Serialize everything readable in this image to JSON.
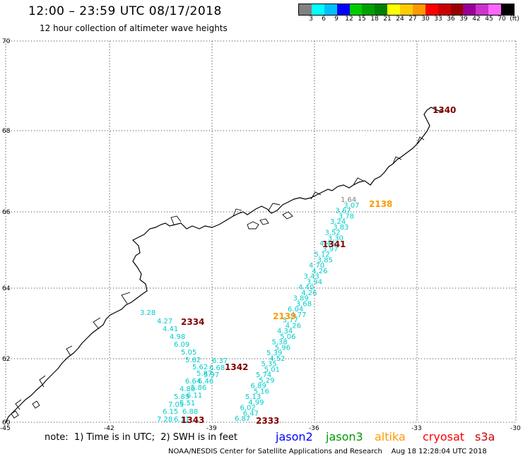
{
  "header": {
    "title": "12:00 – 23:59 UTC 08/17/2018",
    "subtitle": "12 hour collection of altimeter wave heights"
  },
  "colorbar": {
    "colors": [
      "#808080",
      "#00ffff",
      "#00bfff",
      "#0000ff",
      "#00cc00",
      "#00a000",
      "#008000",
      "#ffff00",
      "#ffcc00",
      "#ff9900",
      "#ff0000",
      "#cc0000",
      "#990000",
      "#990099",
      "#cc33cc",
      "#ff66ff",
      "#000000"
    ],
    "labels": [
      "3",
      "6",
      "9",
      "12",
      "15",
      "18",
      "21",
      "24",
      "27",
      "30",
      "33",
      "36",
      "39",
      "42",
      "45",
      "70",
      "(ft)"
    ]
  },
  "axes": {
    "lat_ticks": [
      "70",
      "68",
      "66",
      "64",
      "62",
      "60"
    ],
    "lon_ticks": [
      "-45",
      "-42",
      "-39",
      "-36",
      "-33",
      "-30"
    ]
  },
  "swh_values": [
    {
      "v": "3.28",
      "c": "#00cccc"
    },
    {
      "v": "4.27",
      "c": "#00cccc"
    },
    {
      "v": "4.41",
      "c": "#00cccc"
    },
    {
      "v": "4.98",
      "c": "#00cccc"
    },
    {
      "v": "6.09",
      "c": "#00cccc"
    },
    {
      "v": "5.05",
      "c": "#00cccc"
    },
    {
      "v": "5.62",
      "c": "#00cccc"
    },
    {
      "v": "5.62",
      "c": "#00cccc"
    },
    {
      "v": "5.87",
      "c": "#00cccc"
    },
    {
      "v": "6.64",
      "c": "#00cccc"
    },
    {
      "v": "4.86",
      "c": "#00cccc"
    },
    {
      "v": "5.89",
      "c": "#00cccc"
    },
    {
      "v": "7.05",
      "c": "#00cccc"
    },
    {
      "v": "6.15",
      "c": "#00cccc"
    },
    {
      "v": "7.28",
      "c": "#00cccc"
    },
    {
      "v": "6.11",
      "c": "#00cccc"
    },
    {
      "v": "6.88",
      "c": "#00cccc"
    },
    {
      "v": "5.51",
      "c": "#00cccc"
    },
    {
      "v": "6.11",
      "c": "#00cccc"
    },
    {
      "v": "5.86",
      "c": "#00cccc"
    },
    {
      "v": "6.46",
      "c": "#00cccc"
    },
    {
      "v": "5.97",
      "c": "#00cccc"
    },
    {
      "v": "6.68",
      "c": "#00cccc"
    },
    {
      "v": "6.37",
      "c": "#00cccc"
    },
    {
      "v": "6.87",
      "c": "#00cccc"
    },
    {
      "v": "6.47",
      "c": "#00cccc"
    },
    {
      "v": "6.02",
      "c": "#00cccc"
    },
    {
      "v": "4.99",
      "c": "#00cccc"
    },
    {
      "v": "5.13",
      "c": "#00cccc"
    },
    {
      "v": "5.16",
      "c": "#00cccc"
    },
    {
      "v": "6.89",
      "c": "#00cccc"
    },
    {
      "v": "5.29",
      "c": "#00cccc"
    },
    {
      "v": "5.74",
      "c": "#00cccc"
    },
    {
      "v": "5.01",
      "c": "#00cccc"
    },
    {
      "v": "5.35",
      "c": "#00cccc"
    },
    {
      "v": "4.52",
      "c": "#00cccc"
    },
    {
      "v": "5.39",
      "c": "#00cccc"
    },
    {
      "v": "5.96",
      "c": "#00cccc"
    },
    {
      "v": "5.38",
      "c": "#00cccc"
    },
    {
      "v": "5.06",
      "c": "#00cccc"
    },
    {
      "v": "4.34",
      "c": "#00cccc"
    },
    {
      "v": "4.26",
      "c": "#00cccc"
    },
    {
      "v": "3.77",
      "c": "#00cccc"
    },
    {
      "v": "4.77",
      "c": "#00cccc"
    },
    {
      "v": "6.04",
      "c": "#00cccc"
    },
    {
      "v": "3.68",
      "c": "#00cccc"
    },
    {
      "v": "3.89",
      "c": "#00cccc"
    },
    {
      "v": "4.26",
      "c": "#00cccc"
    },
    {
      "v": "4.40",
      "c": "#00cccc"
    },
    {
      "v": "3.94",
      "c": "#00cccc"
    },
    {
      "v": "3.43",
      "c": "#00cccc"
    },
    {
      "v": "4.26",
      "c": "#00cccc"
    },
    {
      "v": "4.70",
      "c": "#00cccc"
    },
    {
      "v": "3.85",
      "c": "#00cccc"
    },
    {
      "v": "5.12",
      "c": "#00cccc"
    },
    {
      "v": "3.97",
      "c": "#00cccc"
    },
    {
      "v": "4.46",
      "c": "#00cccc"
    },
    {
      "v": "3.30",
      "c": "#00cccc"
    },
    {
      "v": "3.52",
      "c": "#00cccc"
    },
    {
      "v": "3.83",
      "c": "#00cccc"
    },
    {
      "v": "3.24",
      "c": "#00cccc"
    },
    {
      "v": "3.78",
      "c": "#00cccc"
    },
    {
      "v": "3.67",
      "c": "#00cccc"
    },
    {
      "v": "3.07",
      "c": "#00cccc"
    },
    {
      "v": "1.64",
      "c": "#808080"
    }
  ],
  "pass_labels": [
    {
      "t": "1340",
      "c": "#800000"
    },
    {
      "t": "2138",
      "c": "#ff9900"
    },
    {
      "t": "1341",
      "c": "#800000"
    },
    {
      "t": "2334",
      "c": "#800000"
    },
    {
      "t": "2139",
      "c": "#ff9900"
    },
    {
      "t": "1342",
      "c": "#800000"
    },
    {
      "t": "1343",
      "c": "#800000"
    },
    {
      "t": "2333",
      "c": "#800000"
    }
  ],
  "footer": {
    "note": "note:  1) Time is in UTC;  2) SWH is in feet",
    "satellites": [
      {
        "name": "jason2",
        "color": "#0000ff"
      },
      {
        "name": "jason3",
        "color": "#009900"
      },
      {
        "name": "altika",
        "color": "#ff9900"
      },
      {
        "name": "cryosat",
        "color": "#ff0000"
      },
      {
        "name": "s3a",
        "color": "#cc0000"
      }
    ],
    "credit": "NOAA/NESDIS Center for Satellite Applications and Research    Aug 18 12:28:04 UTC 2018"
  }
}
